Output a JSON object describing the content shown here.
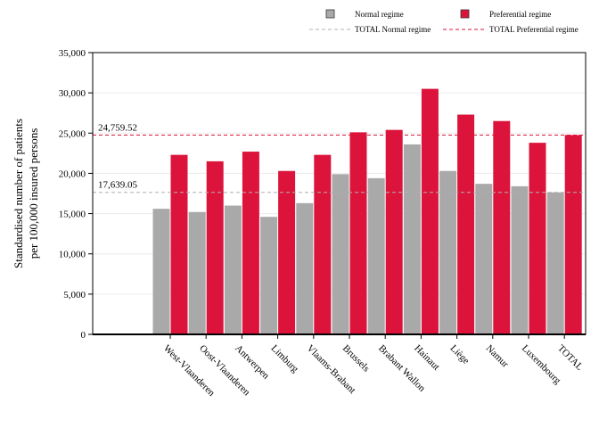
{
  "chart_data": {
    "type": "bar",
    "ylabel": [
      "Standardised number of patients",
      "per 100,000 insured persons"
    ],
    "xlabel": "",
    "ylim": [
      0,
      35000
    ],
    "yticks": [
      0,
      5000,
      10000,
      15000,
      20000,
      25000,
      30000,
      35000
    ],
    "ytick_labels": [
      "0",
      "5,000",
      "10,000",
      "15,000",
      "20,000",
      "25,000",
      "30,000",
      "35,000"
    ],
    "grid": true,
    "legend_position": "top",
    "categories": [
      "West-Vlaanderen",
      "Oost-Vlaanderen",
      "Antwerpen",
      "Limburg",
      "Vlaams-Brabant",
      "Brussels",
      "Brabant Wallon",
      "Hainaut",
      "Liège",
      "Namur",
      "Luxembourg",
      "TOTAL"
    ],
    "series": [
      {
        "name": "Normal regime",
        "color": "#a9a9a9",
        "values": [
          15600,
          15200,
          16000,
          14600,
          16300,
          19900,
          19400,
          23600,
          20300,
          18700,
          18400,
          17639
        ]
      },
      {
        "name": "Preferential regime",
        "color": "#dc143c",
        "values": [
          22300,
          21500,
          22700,
          20300,
          22300,
          25100,
          25400,
          30500,
          27300,
          26500,
          23800,
          24760
        ]
      }
    ],
    "reference_lines": [
      {
        "name": "TOTAL Normal regime",
        "value": 17639.05,
        "label": "17,639.05",
        "color": "#b0b0b0"
      },
      {
        "name": "TOTAL Preferential regime",
        "value": 24759.52,
        "label": "24,759.52",
        "color": "#dc143c"
      }
    ]
  }
}
